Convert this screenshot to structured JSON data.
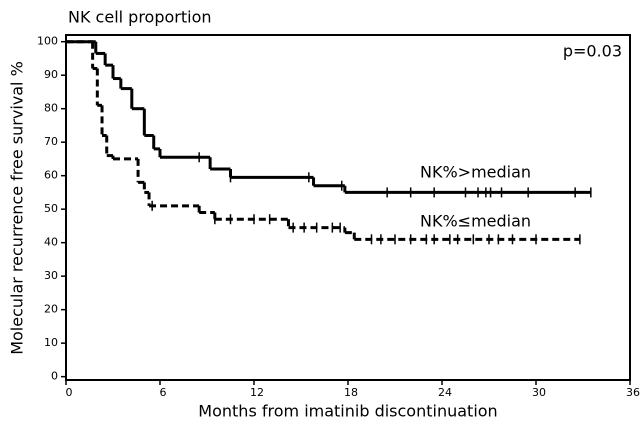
{
  "chart_data": {
    "type": "step",
    "title": "NK cell proportion",
    "x_label": "Months from imatinib discontinuation",
    "y_label": "Molecular recurrence free survival %",
    "annotations": [
      "p=0.03",
      "NK%>median",
      "NK%≤median"
    ],
    "xlim": [
      0,
      36
    ],
    "xticks": [
      0,
      6,
      12,
      18,
      24,
      30,
      36
    ],
    "ylim": [
      -1,
      102
    ],
    "yticks": [
      0,
      10,
      20,
      30,
      40,
      50,
      60,
      70,
      80,
      90,
      100
    ],
    "series": [
      {
        "name": "NK%>median",
        "color": "#000000",
        "dash": false,
        "x": [
          0,
          1.9,
          2.5,
          3.0,
          3.5,
          4.2,
          5.0,
          5.6,
          6.0,
          9.2,
          10.5,
          15.8,
          17.8,
          33.5
        ],
        "values": [
          100,
          96.5,
          93,
          89,
          86,
          80,
          72,
          68,
          65.5,
          62,
          59.5,
          57,
          55,
          55
        ],
        "censored": [
          8.5,
          10.5,
          15.5,
          17.6,
          20.5,
          22,
          23.5,
          25.5,
          26.3,
          26.8,
          27.1,
          27.8,
          29.5,
          32.5
        ]
      },
      {
        "name": "NK%≤median",
        "color": "#000000",
        "dash": true,
        "x": [
          0,
          1.7,
          2.0,
          2.3,
          2.6,
          3.0,
          4.6,
          5.0,
          5.3,
          8.5,
          9.5,
          14.2,
          17.8,
          18.4,
          32.8
        ],
        "values": [
          100,
          92,
          81,
          72,
          66,
          65,
          58,
          55,
          51,
          49,
          47,
          44.5,
          43,
          41,
          41
        ],
        "censored": [
          5.5,
          9.5,
          10.5,
          12,
          13,
          14.5,
          15.2,
          16,
          17,
          17.5,
          19.5,
          20.1,
          21,
          22,
          23,
          23.5,
          24.5,
          25,
          26,
          27,
          27.6,
          28.5,
          30
        ]
      }
    ]
  }
}
